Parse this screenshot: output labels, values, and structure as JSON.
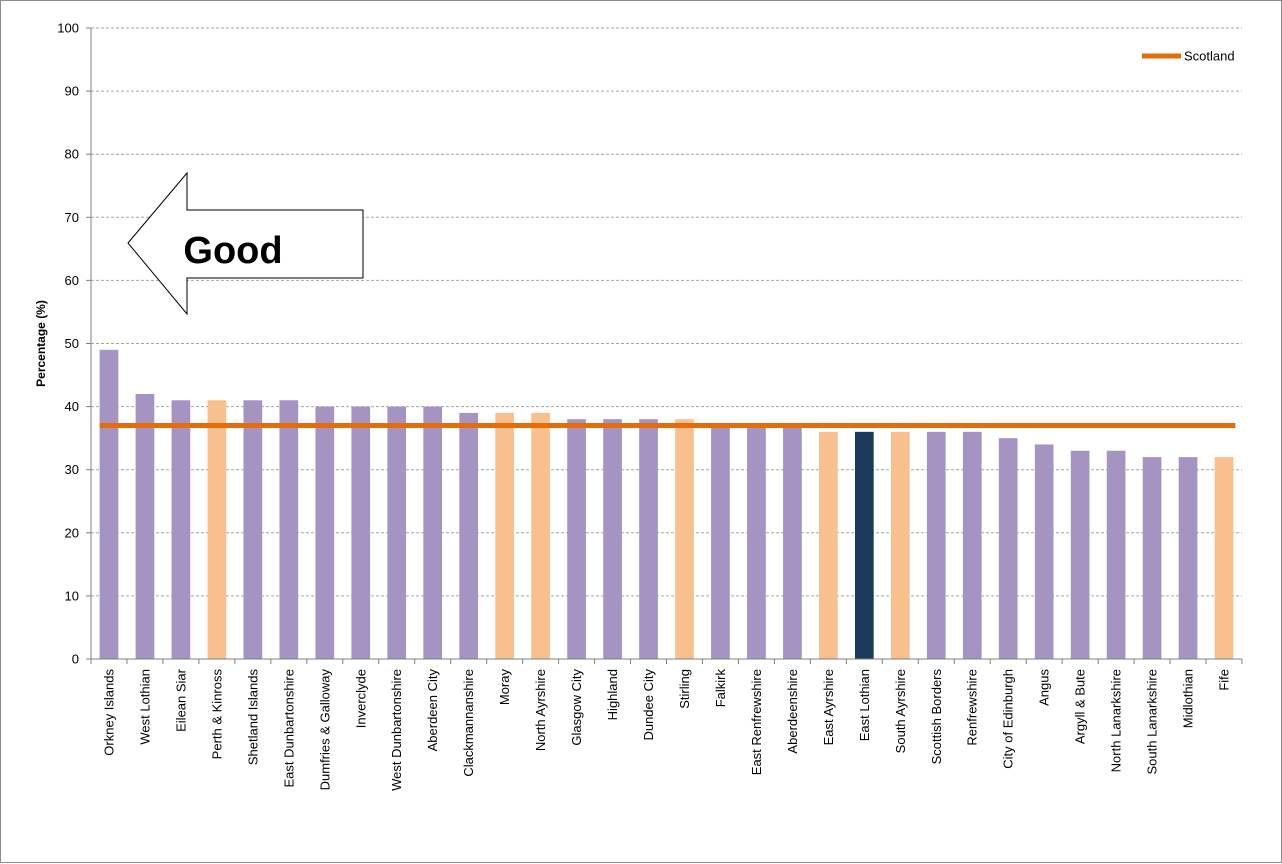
{
  "chart_data": {
    "type": "bar",
    "title": "",
    "xlabel": "",
    "ylabel": "Percentage (%)",
    "ylim": [
      0,
      100
    ],
    "yticks": [
      0,
      10,
      20,
      30,
      40,
      50,
      60,
      70,
      80,
      90,
      100
    ],
    "grid": true,
    "categories": [
      "Orkney Islands",
      "West Lothian",
      "Eilean Siar",
      "Perth & Kinross",
      "Shetland Islands",
      "East Dunbartonshire",
      "Dumfries & Galloway",
      "Inverclyde",
      "West Dunbartonshire",
      "Aberdeen City",
      "Clackmannanshire",
      "Moray",
      "North Ayrshire",
      "Glasgow City",
      "Highland",
      "Dundee City",
      "Stirling",
      "Falkirk",
      "East Renfrewshire",
      "Aberdeenshire",
      "East Ayrshire",
      "East Lothian",
      "South Ayrshire",
      "Scottish Borders",
      "Renfrewshire",
      "City of Edinburgh",
      "Angus",
      "Argyll & Bute",
      "North Lanarkshire",
      "South Lanarkshire",
      "Midlothian",
      "Fife"
    ],
    "values": [
      49,
      42,
      41,
      41,
      41,
      41,
      40,
      40,
      40,
      40,
      39,
      39,
      39,
      38,
      38,
      38,
      38,
      37,
      37,
      37,
      36,
      36,
      36,
      36,
      36,
      35,
      34,
      33,
      33,
      32,
      32,
      32
    ],
    "bar_colors": [
      "#a593c1",
      "#a593c1",
      "#a593c1",
      "#f9c08f",
      "#a593c1",
      "#a593c1",
      "#a593c1",
      "#a593c1",
      "#a593c1",
      "#a593c1",
      "#a593c1",
      "#f9c08f",
      "#f9c08f",
      "#a593c1",
      "#a593c1",
      "#a593c1",
      "#f9c08f",
      "#a593c1",
      "#a593c1",
      "#a593c1",
      "#f9c08f",
      "#1b3a5c",
      "#f9c08f",
      "#a593c1",
      "#a593c1",
      "#a593c1",
      "#a593c1",
      "#a593c1",
      "#a593c1",
      "#a593c1",
      "#a593c1",
      "#f9c08f"
    ],
    "reference_line": {
      "name": "Scotland",
      "value": 37,
      "color": "#e46c0a"
    },
    "legend": {
      "position": "top-right",
      "entries": [
        "Scotland"
      ]
    },
    "annotation": {
      "text": "Good",
      "shape": "left-arrow"
    }
  }
}
